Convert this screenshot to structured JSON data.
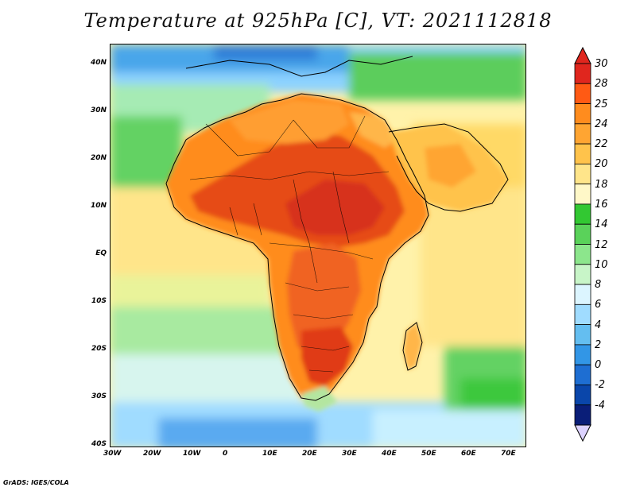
{
  "title": "Temperature at 925hPa [C], VT: 2021112818",
  "credit": "GrADS: IGES/COLA",
  "lat_ticks": [
    "40N",
    "30N",
    "20N",
    "10N",
    "EQ",
    "10S",
    "20S",
    "30S",
    "40S"
  ],
  "lon_ticks": [
    "30W",
    "20W",
    "10W",
    "0",
    "10E",
    "20E",
    "30E",
    "40E",
    "50E",
    "60E",
    "70E"
  ],
  "colorbar": {
    "labels": [
      "30",
      "28",
      "25",
      "24",
      "22",
      "20",
      "18",
      "16",
      "14",
      "12",
      "10",
      "8",
      "6",
      "4",
      "2",
      "0",
      "-2",
      "-4"
    ],
    "colors": [
      "#e0261e",
      "#ff5a14",
      "#ff8c1e",
      "#ffa532",
      "#ffc34b",
      "#ffe58a",
      "#fff8c8",
      "#32c832",
      "#5ad25a",
      "#8ce68c",
      "#c8f5c8",
      "#dcf5ff",
      "#a0dcff",
      "#64bef0",
      "#3296e6",
      "#1e6ed2",
      "#0a46aa",
      "#0a1e78"
    ]
  },
  "map_data": {
    "region": "Africa",
    "variable": "Temperature at 925hPa",
    "unit": "C",
    "valid_time": "2021112818",
    "lat_range": [
      -40,
      45
    ],
    "lon_range": [
      -30,
      75
    ]
  }
}
